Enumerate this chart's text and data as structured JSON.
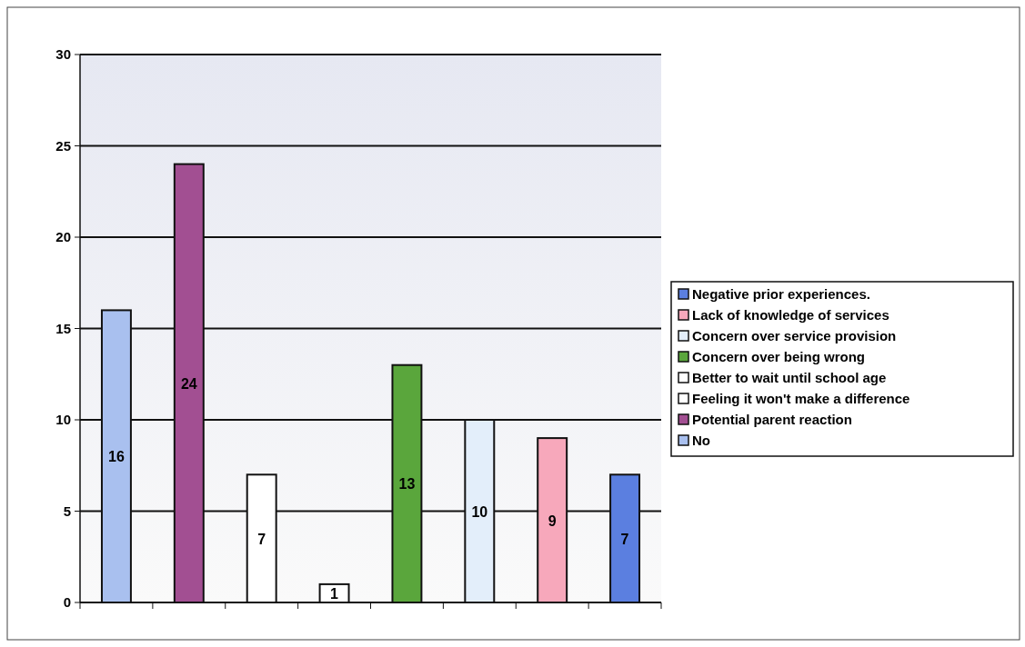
{
  "chart_data": {
    "type": "bar",
    "categories": [
      null,
      null,
      null,
      null,
      null,
      null,
      null,
      null
    ],
    "series": [
      {
        "name": "Negative prior experiences.",
        "color": "#5b7fe0",
        "values": [
          null,
          null,
          null,
          null,
          null,
          null,
          null,
          7
        ]
      },
      {
        "name": "Lack of knowledge of services",
        "color": "#f7a8bb",
        "values": [
          null,
          null,
          null,
          null,
          null,
          null,
          9,
          null
        ]
      },
      {
        "name": "Concern over service provision",
        "color": "#e3eefa",
        "values": [
          null,
          null,
          null,
          null,
          null,
          10,
          null,
          null
        ]
      },
      {
        "name": "Concern over being wrong",
        "color": "#5aa63c",
        "values": [
          null,
          null,
          null,
          null,
          13,
          null,
          null,
          null
        ]
      },
      {
        "name": "Better to wait until school age",
        "color": "#ffffff",
        "values": [
          null,
          null,
          null,
          1,
          null,
          null,
          null,
          null
        ]
      },
      {
        "name": "Feeling it won't make a difference",
        "color": "#ffffff",
        "values": [
          null,
          null,
          7,
          null,
          null,
          null,
          null,
          null
        ]
      },
      {
        "name": "Potential parent reaction",
        "color": "#a24f92",
        "values": [
          null,
          24,
          null,
          null,
          null,
          null,
          null,
          null
        ]
      },
      {
        "name": "No",
        "color": "#a9c0ef",
        "values": [
          16,
          null,
          null,
          null,
          null,
          null,
          null,
          null
        ]
      }
    ],
    "ylim": [
      0,
      30
    ],
    "yticks": [
      0,
      5,
      10,
      15,
      20,
      25,
      30
    ],
    "grid": "y",
    "legend": "right",
    "data_labels": true
  }
}
